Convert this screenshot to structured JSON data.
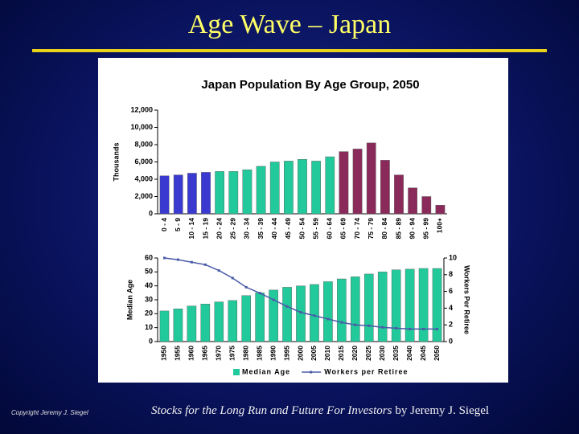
{
  "slide": {
    "title": "Age Wave – Japan",
    "copyright": "Copyright Jeremy J. Siegel",
    "book": "Stocks for the Long Run and Future For Investors",
    "author": "by Jeremy J. Siegel"
  },
  "chart_data": [
    {
      "type": "bar",
      "title": "Japan Population By Age Group, 2050",
      "ylabel": "Thousands",
      "categories": [
        "0 - 4",
        "5 - 9",
        "10 - 14",
        "15 - 19",
        "20 - 24",
        "25 - 29",
        "30 - 34",
        "35 - 39",
        "40 - 44",
        "45 - 49",
        "50 - 54",
        "55 - 59",
        "60 - 64",
        "65 - 69",
        "70 - 74",
        "75 - 79",
        "80 - 84",
        "85 - 89",
        "90 - 94",
        "95 - 99",
        "100+"
      ],
      "values": [
        4400,
        4500,
        4700,
        4800,
        4900,
        4900,
        5100,
        5500,
        6000,
        6100,
        6300,
        6100,
        6600,
        7200,
        7500,
        8200,
        6200,
        4500,
        3000,
        2000,
        1000
      ],
      "colors": [
        "#3a3ad0",
        "#3a3ad0",
        "#3a3ad0",
        "#3a3ad0",
        "#22c99a",
        "#22c99a",
        "#22c99a",
        "#22c99a",
        "#22c99a",
        "#22c99a",
        "#22c99a",
        "#22c99a",
        "#22c99a",
        "#8a2a5a",
        "#8a2a5a",
        "#8a2a5a",
        "#8a2a5a",
        "#8a2a5a",
        "#8a2a5a",
        "#8a2a5a",
        "#8a2a5a"
      ],
      "ylim": [
        0,
        12000
      ],
      "yticks": [
        0,
        {
          "value": 2000,
          "label": "2,000"
        },
        {
          "value": 4000,
          "label": "4,000"
        },
        {
          "value": 6000,
          "label": "6,000"
        },
        {
          "value": 8000,
          "label": "8,000"
        },
        {
          "value": 10000,
          "label": "10,000"
        },
        {
          "value": 12000,
          "label": "12,000"
        }
      ]
    },
    {
      "type": "bar",
      "ylabel": "Median Age",
      "y2label": "Workers Per Retiree",
      "categories": [
        "1950",
        "1955",
        "1960",
        "1965",
        "1970",
        "1975",
        "1980",
        "1985",
        "1990",
        "1995",
        "2000",
        "2005",
        "2010",
        "2015",
        "2020",
        "2025",
        "2030",
        "2035",
        "2040",
        "2045",
        "2050"
      ],
      "series": [
        {
          "name": "Median Age",
          "type": "bar",
          "color": "#22c99a",
          "values": [
            22,
            23.5,
            25.5,
            27,
            28.5,
            29.5,
            33,
            35,
            37,
            39,
            40,
            41,
            43,
            45,
            46.5,
            48.5,
            50,
            51.5,
            52,
            52.5,
            52.5
          ]
        },
        {
          "name": "Workers per Retiree",
          "type": "line",
          "axis": "y2",
          "color": "#4a5aa8",
          "values": [
            10,
            9.8,
            9.5,
            9.2,
            8.5,
            7.6,
            6.5,
            5.8,
            5,
            4.2,
            3.5,
            3.1,
            2.7,
            2.3,
            2,
            1.9,
            1.7,
            1.6,
            1.5,
            1.5,
            1.5
          ]
        }
      ],
      "ylim": [
        0,
        60
      ],
      "yticks": [
        0,
        10,
        20,
        30,
        40,
        50,
        60
      ],
      "y2lim": [
        0,
        10
      ],
      "y2ticks": [
        0,
        2,
        4,
        6,
        8,
        10
      ],
      "legend": "bottom"
    }
  ]
}
